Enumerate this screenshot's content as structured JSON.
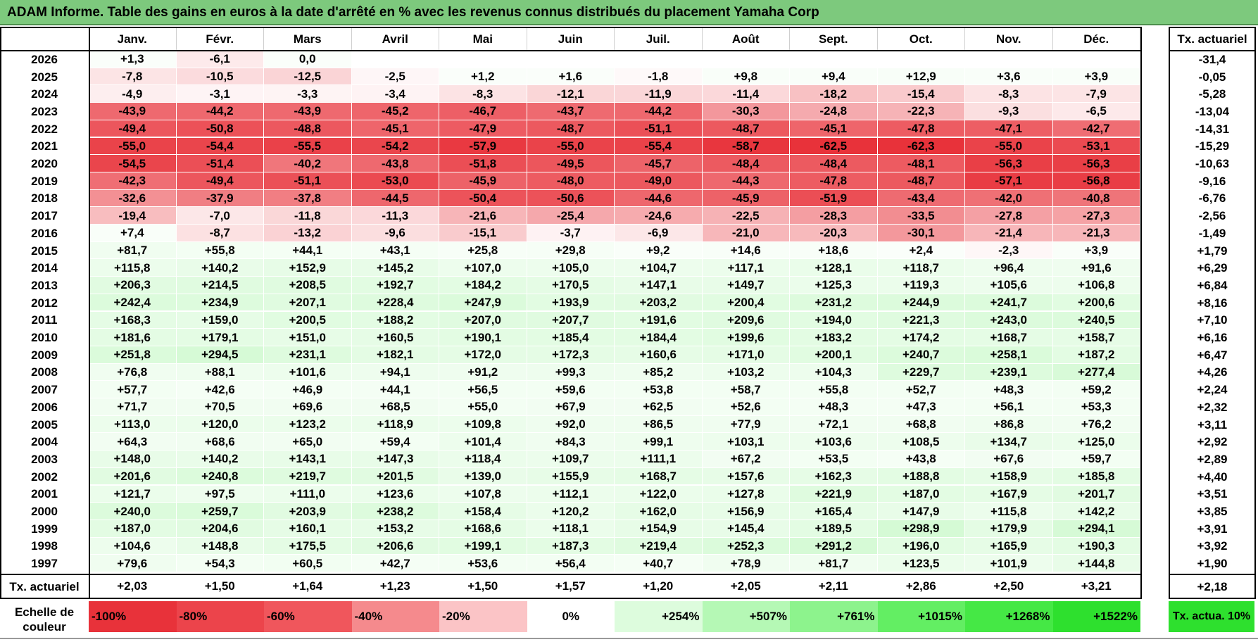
{
  "title": "ADAM Informe. Table des gains en euros à la date d'arrêté en % avec les revenus connus distribués du placement Yamaha Corp",
  "months": [
    "Janv.",
    "Févr.",
    "Mars",
    "Avril",
    "Mai",
    "Juin",
    "Juil.",
    "Août",
    "Sept.",
    "Oct.",
    "Nov.",
    "Déc."
  ],
  "actuarial_header": "Tx. actuariel",
  "rows": [
    {
      "year": "2026",
      "values": [
        "+1,3",
        "-6,1",
        "0,0",
        "",
        "",
        "",
        "",
        "",
        "",
        "",
        "",
        ""
      ],
      "rate": "-31,4"
    },
    {
      "year": "2025",
      "values": [
        "-7,8",
        "-10,5",
        "-12,5",
        "-2,5",
        "+1,2",
        "+1,6",
        "-1,8",
        "+9,8",
        "+9,4",
        "+12,9",
        "+3,6",
        "+3,9"
      ],
      "rate": "-0,05"
    },
    {
      "year": "2024",
      "values": [
        "-4,9",
        "-3,1",
        "-3,3",
        "-3,4",
        "-8,3",
        "-12,1",
        "-11,9",
        "-11,4",
        "-18,2",
        "-15,4",
        "-8,3",
        "-7,9"
      ],
      "rate": "-5,28"
    },
    {
      "year": "2023",
      "values": [
        "-43,9",
        "-44,2",
        "-43,9",
        "-45,2",
        "-46,7",
        "-43,7",
        "-44,2",
        "-30,3",
        "-24,8",
        "-22,3",
        "-9,3",
        "-6,5"
      ],
      "rate": "-13,04"
    },
    {
      "year": "2022",
      "values": [
        "-49,4",
        "-50,8",
        "-48,8",
        "-45,1",
        "-47,9",
        "-48,7",
        "-51,1",
        "-48,7",
        "-45,1",
        "-47,8",
        "-47,1",
        "-42,7"
      ],
      "rate": "-14,31"
    },
    {
      "year": "2021",
      "values": [
        "-55,0",
        "-54,4",
        "-55,5",
        "-54,2",
        "-57,9",
        "-55,0",
        "-55,4",
        "-58,7",
        "-62,5",
        "-62,3",
        "-55,0",
        "-53,1"
      ],
      "rate": "-15,29"
    },
    {
      "year": "2020",
      "values": [
        "-54,5",
        "-51,4",
        "-40,2",
        "-43,8",
        "-51,8",
        "-49,5",
        "-45,7",
        "-48,4",
        "-48,4",
        "-48,1",
        "-56,3",
        "-56,3"
      ],
      "rate": "-10,63"
    },
    {
      "year": "2019",
      "values": [
        "-42,3",
        "-49,4",
        "-51,1",
        "-53,0",
        "-45,9",
        "-48,0",
        "-49,0",
        "-44,3",
        "-47,8",
        "-48,7",
        "-57,1",
        "-56,8"
      ],
      "rate": "-9,16"
    },
    {
      "year": "2018",
      "values": [
        "-32,6",
        "-37,9",
        "-37,8",
        "-44,5",
        "-50,4",
        "-50,6",
        "-44,6",
        "-45,9",
        "-51,9",
        "-43,4",
        "-42,0",
        "-40,8"
      ],
      "rate": "-6,76"
    },
    {
      "year": "2017",
      "values": [
        "-19,4",
        "-7,0",
        "-11,8",
        "-11,3",
        "-21,6",
        "-25,4",
        "-24,6",
        "-22,5",
        "-28,3",
        "-33,5",
        "-27,8",
        "-27,3"
      ],
      "rate": "-2,56"
    },
    {
      "year": "2016",
      "values": [
        "+7,4",
        "-8,7",
        "-13,2",
        "-9,6",
        "-15,1",
        "-3,7",
        "-6,9",
        "-21,0",
        "-20,3",
        "-30,1",
        "-21,4",
        "-21,3"
      ],
      "rate": "-1,49"
    },
    {
      "year": "2015",
      "values": [
        "+81,7",
        "+55,8",
        "+44,1",
        "+43,1",
        "+25,8",
        "+29,8",
        "+9,2",
        "+14,6",
        "+18,6",
        "+2,4",
        "-2,3",
        "+3,9"
      ],
      "rate": "+1,79"
    },
    {
      "year": "2014",
      "values": [
        "+115,8",
        "+140,2",
        "+152,9",
        "+145,2",
        "+107,0",
        "+105,0",
        "+104,7",
        "+117,1",
        "+128,1",
        "+118,7",
        "+96,4",
        "+91,6"
      ],
      "rate": "+6,29"
    },
    {
      "year": "2013",
      "values": [
        "+206,3",
        "+214,5",
        "+208,5",
        "+192,7",
        "+184,2",
        "+170,5",
        "+147,1",
        "+149,7",
        "+125,3",
        "+119,3",
        "+105,6",
        "+106,8"
      ],
      "rate": "+6,84"
    },
    {
      "year": "2012",
      "values": [
        "+242,4",
        "+234,9",
        "+207,1",
        "+228,4",
        "+247,9",
        "+193,9",
        "+203,2",
        "+200,4",
        "+231,2",
        "+244,9",
        "+241,7",
        "+200,6"
      ],
      "rate": "+8,16"
    },
    {
      "year": "2011",
      "values": [
        "+168,3",
        "+159,0",
        "+200,5",
        "+188,2",
        "+207,0",
        "+207,7",
        "+191,6",
        "+209,6",
        "+194,0",
        "+221,3",
        "+243,0",
        "+240,5"
      ],
      "rate": "+7,10"
    },
    {
      "year": "2010",
      "values": [
        "+181,6",
        "+179,1",
        "+151,0",
        "+160,5",
        "+190,1",
        "+185,4",
        "+184,4",
        "+199,6",
        "+183,2",
        "+174,2",
        "+168,7",
        "+158,7"
      ],
      "rate": "+6,16"
    },
    {
      "year": "2009",
      "values": [
        "+251,8",
        "+294,5",
        "+231,1",
        "+182,1",
        "+172,0",
        "+172,3",
        "+160,6",
        "+171,0",
        "+200,1",
        "+240,7",
        "+258,1",
        "+187,2"
      ],
      "rate": "+6,47"
    },
    {
      "year": "2008",
      "values": [
        "+76,8",
        "+88,1",
        "+101,6",
        "+94,1",
        "+91,2",
        "+99,3",
        "+85,2",
        "+103,2",
        "+104,3",
        "+229,7",
        "+239,1",
        "+277,4"
      ],
      "rate": "+4,26"
    },
    {
      "year": "2007",
      "values": [
        "+57,7",
        "+42,6",
        "+46,9",
        "+44,1",
        "+56,5",
        "+59,6",
        "+53,8",
        "+58,7",
        "+55,8",
        "+52,7",
        "+48,3",
        "+59,2"
      ],
      "rate": "+2,24"
    },
    {
      "year": "2006",
      "values": [
        "+71,7",
        "+70,5",
        "+69,6",
        "+68,5",
        "+55,0",
        "+67,9",
        "+62,5",
        "+52,6",
        "+48,3",
        "+47,3",
        "+56,1",
        "+53,3"
      ],
      "rate": "+2,32"
    },
    {
      "year": "2005",
      "values": [
        "+113,0",
        "+120,0",
        "+123,2",
        "+118,9",
        "+109,8",
        "+92,0",
        "+86,5",
        "+77,9",
        "+72,1",
        "+68,8",
        "+86,8",
        "+76,2"
      ],
      "rate": "+3,11"
    },
    {
      "year": "2004",
      "values": [
        "+64,3",
        "+68,6",
        "+65,0",
        "+59,4",
        "+101,4",
        "+84,3",
        "+99,1",
        "+103,1",
        "+103,6",
        "+108,5",
        "+134,7",
        "+125,0"
      ],
      "rate": "+2,92"
    },
    {
      "year": "2003",
      "values": [
        "+148,0",
        "+140,2",
        "+143,1",
        "+147,3",
        "+118,4",
        "+109,7",
        "+111,1",
        "+67,2",
        "+53,5",
        "+43,8",
        "+67,6",
        "+59,7"
      ],
      "rate": "+2,89"
    },
    {
      "year": "2002",
      "values": [
        "+201,6",
        "+240,8",
        "+219,7",
        "+201,5",
        "+139,0",
        "+155,9",
        "+168,7",
        "+157,6",
        "+162,3",
        "+188,8",
        "+158,9",
        "+185,8"
      ],
      "rate": "+4,40"
    },
    {
      "year": "2001",
      "values": [
        "+121,7",
        "+97,5",
        "+111,0",
        "+123,6",
        "+107,8",
        "+112,1",
        "+122,0",
        "+127,8",
        "+221,9",
        "+187,0",
        "+167,9",
        "+201,7"
      ],
      "rate": "+3,51"
    },
    {
      "year": "2000",
      "values": [
        "+240,0",
        "+259,7",
        "+203,9",
        "+238,2",
        "+158,4",
        "+120,2",
        "+162,0",
        "+156,9",
        "+165,4",
        "+147,9",
        "+115,8",
        "+142,2"
      ],
      "rate": "+3,85"
    },
    {
      "year": "1999",
      "values": [
        "+187,0",
        "+204,6",
        "+160,1",
        "+153,2",
        "+168,6",
        "+118,1",
        "+154,9",
        "+145,4",
        "+189,5",
        "+298,9",
        "+179,9",
        "+294,1"
      ],
      "rate": "+3,91"
    },
    {
      "year": "1998",
      "values": [
        "+104,6",
        "+148,8",
        "+175,5",
        "+206,6",
        "+199,1",
        "+187,3",
        "+219,4",
        "+252,3",
        "+291,2",
        "+196,0",
        "+165,9",
        "+190,3"
      ],
      "rate": "+3,92"
    },
    {
      "year": "1997",
      "values": [
        "+79,6",
        "+54,3",
        "+60,5",
        "+42,7",
        "+53,6",
        "+56,4",
        "+40,7",
        "+78,9",
        "+81,7",
        "+123,5",
        "+101,9",
        "+144,8"
      ],
      "rate": "+1,90"
    }
  ],
  "summary": {
    "label": "Tx. actuariel",
    "values": [
      "+2,03",
      "+1,50",
      "+1,64",
      "+1,23",
      "+1,50",
      "+1,57",
      "+1,20",
      "+2,05",
      "+2,11",
      "+2,86",
      "+2,50",
      "+3,21"
    ],
    "rate": "+2,18"
  },
  "legend": {
    "label": "Echelle de couleur",
    "items": [
      {
        "text": "-100%",
        "color": "#e8323a",
        "align": "l"
      },
      {
        "text": "-80%",
        "color": "#ec444b",
        "align": "l"
      },
      {
        "text": "-60%",
        "color": "#f0565c",
        "align": "l"
      },
      {
        "text": "-40%",
        "color": "#f58a8d",
        "align": "l"
      },
      {
        "text": "-20%",
        "color": "#fbc4c6",
        "align": "l"
      },
      {
        "text": "0%",
        "color": "#ffffff",
        "align": "c"
      },
      {
        "text": "+254%",
        "color": "#ddfcdd",
        "align": "r"
      },
      {
        "text": "+507%",
        "color": "#b5f8b5",
        "align": "r"
      },
      {
        "text": "+761%",
        "color": "#8df38d",
        "align": "r"
      },
      {
        "text": "+1015%",
        "color": "#63ee63",
        "align": "r"
      },
      {
        "text": "+1268%",
        "color": "#45e845",
        "align": "r"
      },
      {
        "text": "+1522%",
        "color": "#2ee02e",
        "align": "r"
      }
    ],
    "actuarial_box": "Tx. actua. 10%",
    "actuarial_color": "#2ee02e"
  },
  "colors": {
    "title_bar": "#7dc97d",
    "negative_full": "#e8323a",
    "positive_full": "#2ee02e"
  }
}
